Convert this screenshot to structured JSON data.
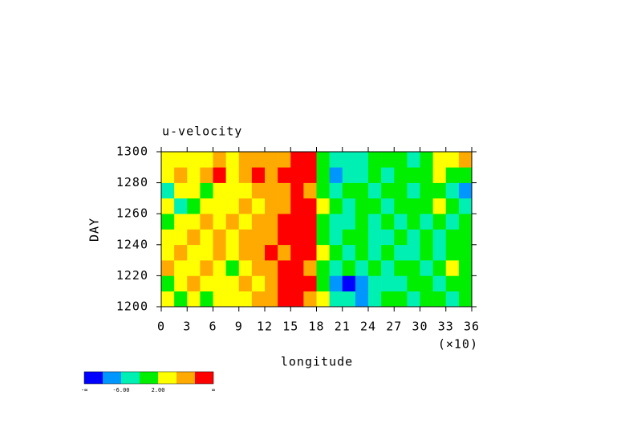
{
  "chart_data": {
    "type": "contour",
    "title": "u-velocity",
    "x_label": "longitude",
    "x_multiplier": "(×10)",
    "y_label": "DAY",
    "xlim": [
      0,
      36
    ],
    "xticks": [
      0,
      3,
      6,
      9,
      12,
      15,
      18,
      21,
      24,
      27,
      30,
      33,
      36
    ],
    "ylim": [
      1200,
      1300
    ],
    "yticks": [
      1200,
      1220,
      1240,
      1260,
      1280,
      1300
    ],
    "x": [
      0.75,
      2.25,
      3.75,
      5.25,
      6.75,
      8.25,
      9.75,
      11.25,
      12.75,
      14.25,
      15.75,
      17.25,
      18.75,
      20.25,
      21.75,
      23.25,
      24.75,
      26.25,
      27.75,
      29.25,
      30.75,
      32.25,
      33.75,
      35.25
    ],
    "y": [
      1205,
      1215,
      1225,
      1235,
      1245,
      1255,
      1265,
      1275,
      1285,
      1295
    ],
    "z": [
      [
        4,
        1,
        3,
        0,
        2,
        5,
        3,
        6,
        9,
        11,
        13,
        8,
        5,
        -3,
        -5,
        -7,
        -4,
        -2,
        -1,
        -3,
        0,
        -2,
        -4,
        -1
      ],
      [
        1,
        5,
        7,
        2,
        3,
        4,
        6,
        5,
        8,
        10,
        12,
        11,
        1,
        -7,
        -11,
        -8,
        -6,
        -3,
        -4,
        -2,
        1,
        -3,
        -2,
        0
      ],
      [
        6,
        2,
        4,
        8,
        3,
        1,
        5,
        7,
        9,
        12,
        11,
        7,
        0,
        -3,
        -2,
        -4,
        -1,
        -5,
        -2,
        0,
        -3,
        -1,
        3,
        -2
      ],
      [
        3,
        7,
        2,
        5,
        6,
        4,
        8,
        6,
        10,
        9,
        13,
        12,
        2,
        -2,
        -4,
        -1,
        -3,
        -2,
        -6,
        -3,
        -1,
        -4,
        0,
        -2
      ],
      [
        2,
        4,
        6,
        3,
        7,
        5,
        9,
        8,
        7,
        11,
        14,
        12,
        1,
        -3,
        -1,
        -2,
        -4,
        -3,
        -1,
        -5,
        -2,
        -3,
        1,
        -1
      ],
      [
        -1,
        3,
        2,
        6,
        4,
        7,
        5,
        9,
        8,
        10,
        13,
        11,
        0,
        -4,
        -3,
        -2,
        -5,
        -1,
        -3,
        -2,
        -4,
        -1,
        -3,
        -2
      ],
      [
        4,
        -3,
        1,
        3,
        5,
        2,
        6,
        4,
        7,
        9,
        12,
        13,
        3,
        -2,
        -4,
        -1,
        -2,
        -3,
        0,
        -2,
        -1,
        3,
        -2,
        -4
      ],
      [
        -4,
        2,
        5,
        1,
        3,
        4,
        3,
        6,
        8,
        9,
        12,
        7,
        -1,
        -3,
        -1,
        -2,
        -3,
        -1,
        -2,
        -4,
        -1,
        -2,
        -3,
        -7
      ],
      [
        3,
        6,
        2,
        7,
        12,
        5,
        8,
        11,
        9,
        10,
        11,
        13,
        -2,
        -7,
        -5,
        -3,
        -2,
        -4,
        -1,
        -2,
        1,
        4,
        -1,
        -2
      ],
      [
        5,
        3,
        4,
        2,
        6,
        3,
        7,
        9,
        7,
        8,
        12,
        13,
        -2,
        -5,
        -6,
        -3,
        -2,
        0,
        -1,
        -3,
        -2,
        5,
        3,
        7
      ]
    ],
    "levels": [
      -10,
      -6,
      -2,
      2,
      6,
      10
    ],
    "colors": [
      "#0000ff",
      "#0096ff",
      "#00f0b4",
      "#00ee00",
      "#ffff00",
      "#ffaa00",
      "#ff0000"
    ],
    "colorbar_ticks": [
      {
        "label": "-∞"
      },
      {
        "value": -6,
        "label": "-6.00"
      },
      {
        "value": 2,
        "label": "2.00"
      },
      {
        "label": "∞"
      }
    ]
  }
}
